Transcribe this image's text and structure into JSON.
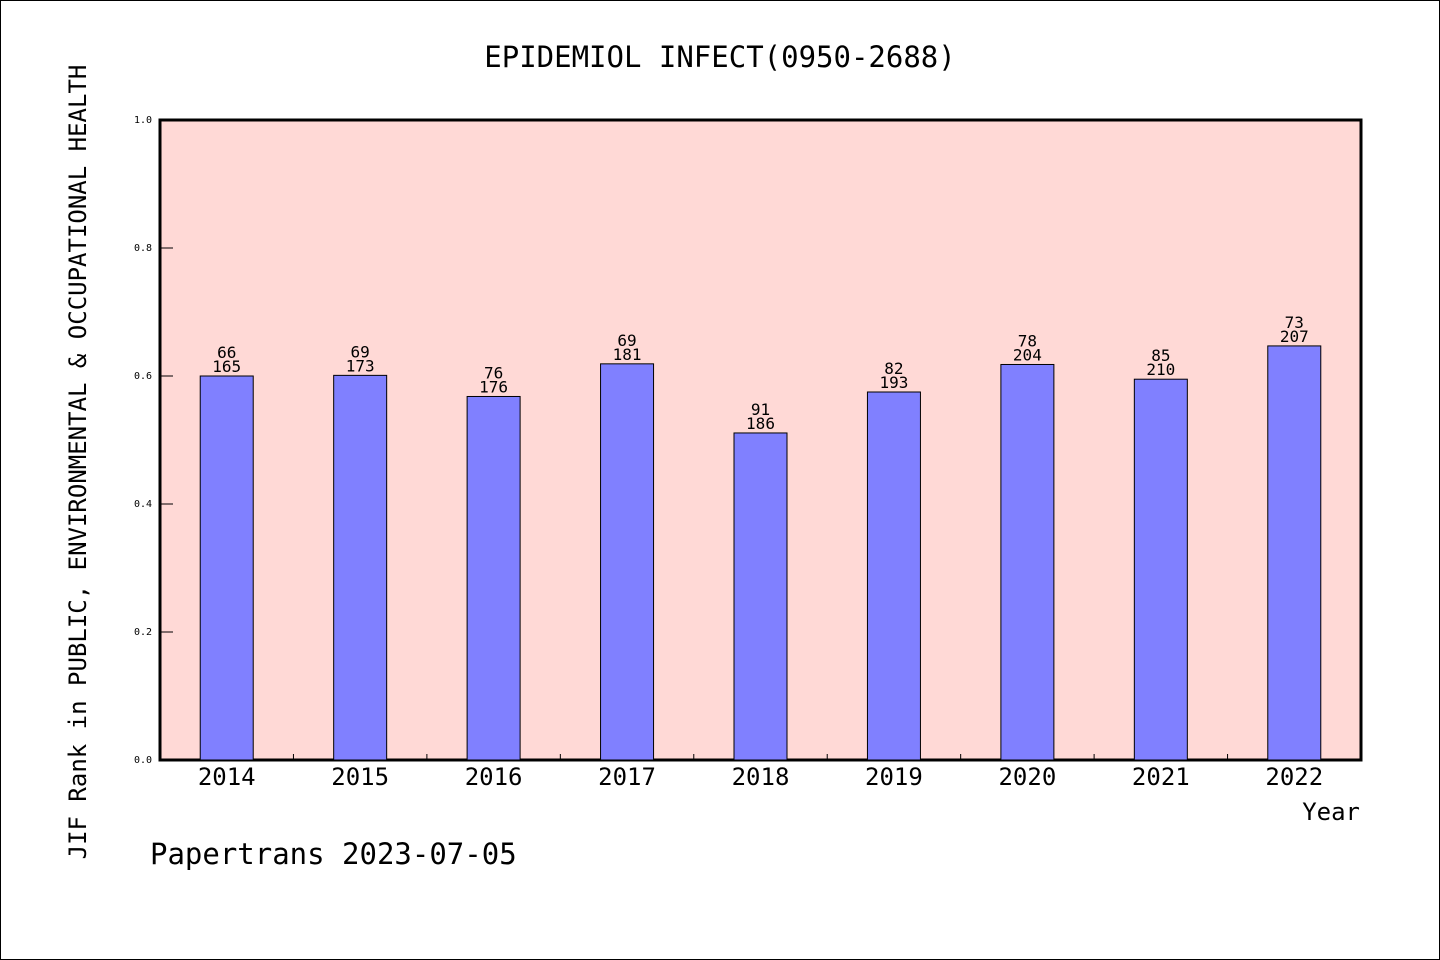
{
  "chart_data": {
    "type": "bar",
    "title": "EPIDEMIOL INFECT(0950-2688)",
    "xlabel": "Year",
    "ylabel": "JIF Rank in PUBLIC, ENVIRONMENTAL & OCCUPATIONAL HEALTH",
    "ylim": [
      0,
      1.0
    ],
    "yticks": [
      "0.0",
      "0.2",
      "0.4",
      "0.6",
      "0.8",
      "1.0"
    ],
    "categories": [
      "2014",
      "2015",
      "2016",
      "2017",
      "2018",
      "2019",
      "2020",
      "2021",
      "2022"
    ],
    "ranks": [
      66,
      69,
      76,
      69,
      91,
      82,
      78,
      85,
      73
    ],
    "totals": [
      165,
      173,
      176,
      181,
      186,
      193,
      204,
      210,
      207
    ],
    "values": [
      0.6,
      0.601,
      0.568,
      0.619,
      0.511,
      0.575,
      0.618,
      0.595,
      0.647
    ],
    "grid": false,
    "colors": {
      "plot_bg": "#FFD9D6",
      "bar": "#8080FF"
    }
  },
  "footer": "Papertrans 2023-07-05"
}
